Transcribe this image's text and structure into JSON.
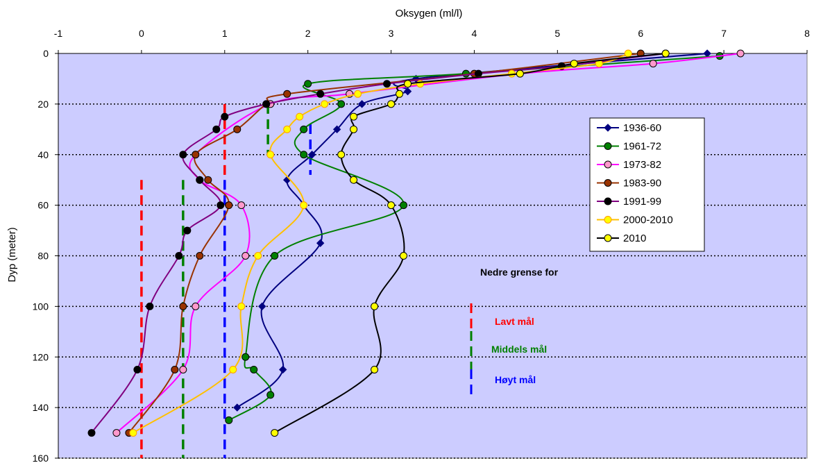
{
  "chart_data": {
    "type": "line",
    "xlabel": "Oksygen (ml/l)",
    "ylabel": "Dyp (meter)",
    "xlim": [
      -1,
      8
    ],
    "ylim": [
      0,
      160
    ],
    "x_ticks": [
      -1,
      0,
      1,
      2,
      3,
      4,
      5,
      6,
      7,
      8
    ],
    "y_ticks": [
      0,
      20,
      40,
      60,
      80,
      100,
      120,
      140,
      160
    ],
    "x_axis_position": "top",
    "y_axis_inverted": true,
    "plot_background": "#ccccff",
    "grid": "horizontal dotted at 20 m intervals",
    "legend_position": "right",
    "series": [
      {
        "name": "1936-60",
        "color": "#000080",
        "marker": "diamond",
        "points": [
          [
            6.8,
            0
          ],
          [
            3.3,
            10
          ],
          [
            3.2,
            15
          ],
          [
            2.65,
            20
          ],
          [
            2.35,
            30
          ],
          [
            2.05,
            40
          ],
          [
            1.75,
            50
          ],
          [
            1.95,
            60
          ],
          [
            2.15,
            75
          ],
          [
            1.45,
            100
          ],
          [
            1.7,
            125
          ],
          [
            1.15,
            140
          ]
        ]
      },
      {
        "name": "1961-72",
        "color": "#008000",
        "marker": "circle",
        "points": [
          [
            6.95,
            1
          ],
          [
            3.9,
            8
          ],
          [
            2.0,
            12
          ],
          [
            2.4,
            20
          ],
          [
            1.95,
            30
          ],
          [
            1.95,
            40
          ],
          [
            3.15,
            60
          ],
          [
            1.6,
            80
          ],
          [
            1.25,
            120
          ],
          [
            1.35,
            125
          ],
          [
            1.55,
            135
          ],
          [
            1.05,
            145
          ]
        ]
      },
      {
        "name": "1973-82",
        "color": "#ff00ff",
        "marker": "circle",
        "points": [
          [
            7.2,
            0
          ],
          [
            6.15,
            4
          ],
          [
            4.55,
            8
          ],
          [
            2.5,
            16
          ],
          [
            1.55,
            20
          ],
          [
            0.65,
            40
          ],
          [
            0.7,
            50
          ],
          [
            1.2,
            60
          ],
          [
            1.25,
            80
          ],
          [
            0.65,
            100
          ],
          [
            0.5,
            125
          ],
          [
            -0.3,
            150
          ]
        ]
      },
      {
        "name": "1983-90",
        "color": "#993300",
        "marker": "circle",
        "points": [
          [
            6.0,
            0
          ],
          [
            4.0,
            8
          ],
          [
            1.75,
            16
          ],
          [
            1.5,
            20
          ],
          [
            1.15,
            30
          ],
          [
            0.65,
            40
          ],
          [
            0.8,
            50
          ],
          [
            1.05,
            60
          ],
          [
            0.7,
            80
          ],
          [
            0.5,
            100
          ],
          [
            0.4,
            125
          ],
          [
            -0.15,
            150
          ]
        ]
      },
      {
        "name": "1991-99",
        "color": "#800080",
        "marker": "circle",
        "points": [
          [
            6.3,
            0
          ],
          [
            5.05,
            5
          ],
          [
            4.05,
            8
          ],
          [
            2.95,
            12
          ],
          [
            2.15,
            16
          ],
          [
            1.5,
            20
          ],
          [
            1.0,
            25
          ],
          [
            0.9,
            30
          ],
          [
            0.5,
            40
          ],
          [
            0.7,
            50
          ],
          [
            0.95,
            60
          ],
          [
            0.55,
            70
          ],
          [
            0.45,
            80
          ],
          [
            0.1,
            100
          ],
          [
            -0.05,
            125
          ],
          [
            -0.6,
            150
          ]
        ]
      },
      {
        "name": "2000-2010",
        "color": "#ffc000",
        "marker": "circle",
        "points": [
          [
            5.85,
            0
          ],
          [
            5.5,
            4
          ],
          [
            4.45,
            8
          ],
          [
            3.35,
            12
          ],
          [
            2.6,
            16
          ],
          [
            2.2,
            20
          ],
          [
            1.9,
            25
          ],
          [
            1.75,
            30
          ],
          [
            1.55,
            40
          ],
          [
            1.95,
            60
          ],
          [
            1.4,
            80
          ],
          [
            1.2,
            100
          ],
          [
            1.1,
            125
          ],
          [
            -0.1,
            150
          ]
        ]
      },
      {
        "name": "2010",
        "color": "#000000",
        "marker": "circle",
        "points": [
          [
            6.3,
            0
          ],
          [
            5.2,
            4
          ],
          [
            4.55,
            8
          ],
          [
            3.2,
            12
          ],
          [
            3.1,
            16
          ],
          [
            3.0,
            20
          ],
          [
            2.55,
            25
          ],
          [
            2.55,
            30
          ],
          [
            2.4,
            40
          ],
          [
            2.55,
            50
          ],
          [
            3.0,
            60
          ],
          [
            3.15,
            80
          ],
          [
            2.8,
            100
          ],
          [
            2.8,
            125
          ],
          [
            1.6,
            150
          ]
        ]
      }
    ],
    "reference_lines": [
      {
        "name": "Lavt mål",
        "color": "#ff0000",
        "segments": [
          [
            1.0,
            20,
            1.0,
            48
          ],
          [
            0.0,
            50,
            0.0,
            160
          ]
        ]
      },
      {
        "name": "Middels mål",
        "color": "#008000",
        "segments": [
          [
            1.52,
            20,
            1.52,
            40
          ],
          [
            0.5,
            50,
            0.5,
            160
          ]
        ]
      },
      {
        "name": "Høyt mål",
        "color": "#0000ff",
        "segments": [
          [
            2.03,
            28,
            2.03,
            48
          ],
          [
            1.0,
            50,
            1.0,
            160
          ]
        ]
      }
    ],
    "annotation": {
      "heading": "Nedre grense for",
      "items": [
        {
          "label": "Lavt mål",
          "color": "#ff0000"
        },
        {
          "label": "Middels mål",
          "color": "#008000"
        },
        {
          "label": "Høyt mål",
          "color": "#0000ff"
        }
      ]
    }
  }
}
